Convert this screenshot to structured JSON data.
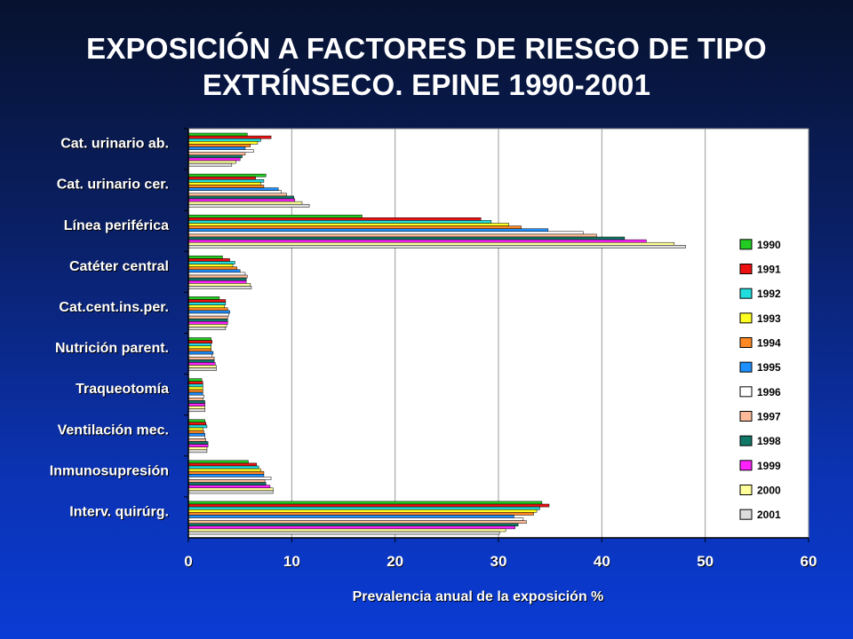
{
  "title": {
    "line1": "EXPOSICIÓN A FACTORES DE RIESGO DE TIPO",
    "line2": "EXTRÍNSECO. EPINE 1990-2001"
  },
  "chart_data": {
    "type": "bar",
    "orientation": "horizontal",
    "title": "EXPOSICIÓN A FACTORES DE RIESGO DE TIPO EXTRÍNSECO. EPINE 1990-2001",
    "xlabel": "Prevalencia anual de la exposición %",
    "ylabel": "",
    "xlim": [
      0,
      60
    ],
    "xticks": [
      0,
      10,
      20,
      30,
      40,
      50,
      60
    ],
    "grid": "vertical",
    "legend_position": "right",
    "categories": [
      "Cat. urinario ab.",
      "Cat. urinario cer.",
      "Línea periférica",
      "Catéter central",
      "Cat.cent.ins.per.",
      "Nutrición parent.",
      "Traqueotomía",
      "Ventilación mec.",
      "Inmunosupresión",
      "Interv. quirúrg."
    ],
    "series": [
      {
        "name": "1990",
        "color": "#22cc22",
        "values": [
          5.7,
          7.5,
          16.8,
          3.3,
          3.0,
          2.2,
          1.3,
          1.6,
          5.8,
          34.2
        ]
      },
      {
        "name": "1991",
        "color": "#ee1111",
        "values": [
          8.0,
          6.5,
          28.3,
          4.0,
          3.6,
          2.3,
          1.4,
          1.7,
          6.6,
          34.9
        ]
      },
      {
        "name": "1992",
        "color": "#22dddd",
        "values": [
          7.0,
          7.3,
          29.3,
          4.5,
          3.6,
          2.2,
          1.4,
          1.8,
          6.8,
          34.0
        ]
      },
      {
        "name": "1993",
        "color": "#ffff22",
        "values": [
          6.7,
          7.0,
          31.0,
          4.3,
          3.5,
          2.2,
          1.4,
          1.4,
          7.0,
          33.7
        ]
      },
      {
        "name": "1994",
        "color": "#ff8822",
        "values": [
          6.0,
          7.3,
          32.2,
          4.7,
          3.8,
          2.2,
          1.4,
          1.5,
          7.3,
          33.4
        ]
      },
      {
        "name": "1995",
        "color": "#1e90ff",
        "values": [
          5.5,
          8.7,
          34.8,
          5.0,
          4.0,
          2.4,
          1.4,
          1.6,
          7.3,
          31.5
        ]
      },
      {
        "name": "1996",
        "color": "#ffffff",
        "values": [
          6.3,
          9.0,
          38.2,
          5.5,
          3.9,
          2.3,
          1.5,
          1.6,
          8.0,
          32.4
        ]
      },
      {
        "name": "1997",
        "color": "#ffbb99",
        "values": [
          5.5,
          9.5,
          39.5,
          5.7,
          3.8,
          2.5,
          1.4,
          1.7,
          7.4,
          32.7
        ]
      },
      {
        "name": "1998",
        "color": "#117766",
        "values": [
          5.2,
          10.2,
          42.2,
          5.6,
          3.8,
          2.5,
          1.6,
          1.9,
          7.5,
          31.9
        ]
      },
      {
        "name": "1999",
        "color": "#ff22ff",
        "values": [
          5.0,
          10.3,
          44.3,
          5.6,
          3.8,
          2.6,
          1.6,
          1.9,
          7.9,
          31.6
        ]
      },
      {
        "name": "2000",
        "color": "#ffff99",
        "values": [
          4.6,
          11.0,
          47.0,
          6.0,
          3.7,
          2.7,
          1.6,
          1.8,
          8.2,
          30.7
        ]
      },
      {
        "name": "2001",
        "color": "#dddddd",
        "values": [
          4.2,
          11.7,
          48.1,
          6.1,
          3.6,
          2.7,
          1.6,
          1.8,
          8.2,
          30.1
        ]
      }
    ]
  }
}
